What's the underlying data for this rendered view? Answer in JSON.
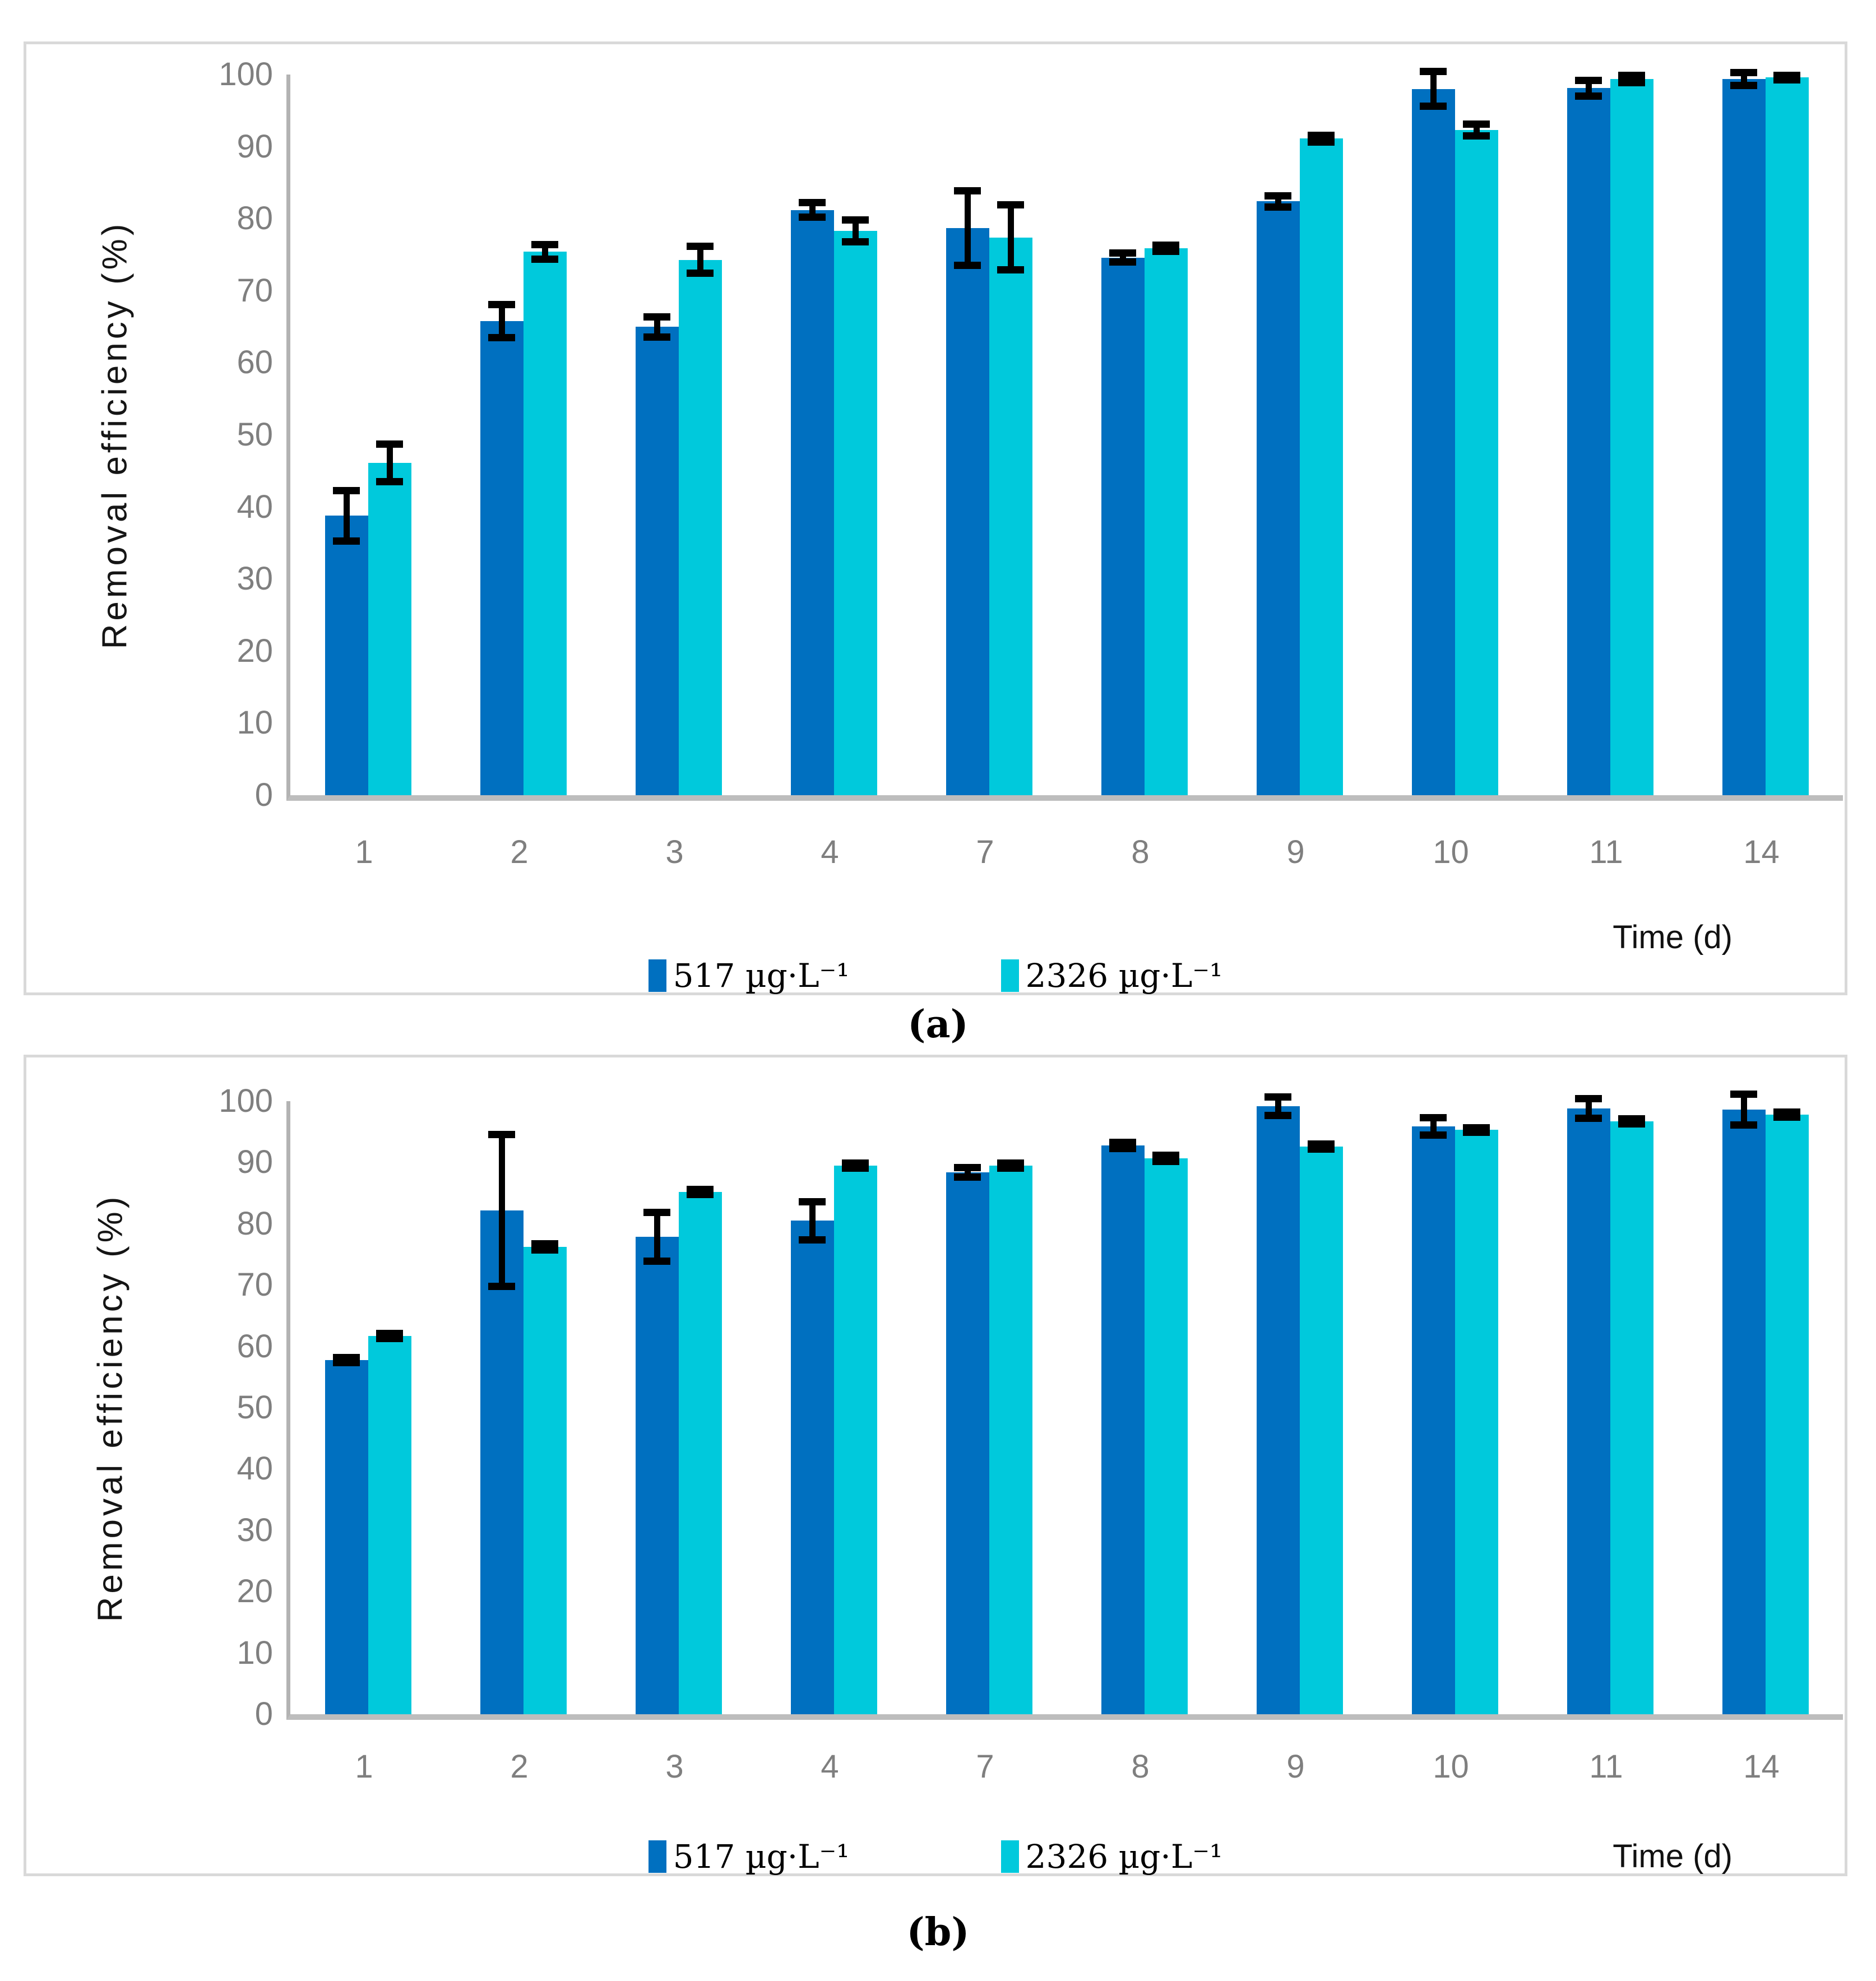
{
  "figure": {
    "panel_a_caption": "(a)",
    "panel_b_caption": "(b)"
  },
  "colors": {
    "series_517": "#0070C0",
    "series_2326": "#00C9DC",
    "axis_line": "#B3B3B3",
    "baseline": "#BDBDBD",
    "tick_text": "#7F7F7F",
    "panel_border": "#D9D9D9",
    "error_bar": "#000000"
  },
  "chart_data": [
    {
      "type": "bar",
      "title": "(a)",
      "categories": [
        "1",
        "2",
        "3",
        "4",
        "7",
        "8",
        "9",
        "10",
        "11",
        "14"
      ],
      "series": [
        {
          "name": "517 µg·L⁻¹",
          "color": "#0070C0",
          "values": [
            38.8,
            65.8,
            65.0,
            81.2,
            78.7,
            74.6,
            82.4,
            98.0,
            98.1,
            99.4
          ],
          "errors": [
            3.5,
            2.3,
            1.4,
            1.0,
            5.2,
            0.6,
            0.8,
            2.4,
            1.1,
            0.9
          ]
        },
        {
          "name": "2326 µg·L⁻¹",
          "color": "#00C9DC",
          "values": [
            46.1,
            75.4,
            74.3,
            78.3,
            77.4,
            75.9,
            91.1,
            92.3,
            99.4,
            99.6
          ],
          "errors": [
            2.6,
            1.0,
            1.9,
            1.5,
            4.5,
            0.4,
            0.5,
            0.8,
            0.5,
            0.3
          ]
        }
      ],
      "xlabel": "Time (d)",
      "ylabel": "Removal efficiency (%)",
      "ylim": [
        0,
        100
      ],
      "ytick_step": 10,
      "grid": false,
      "legend_position": "bottom-center",
      "error_bars": true
    },
    {
      "type": "bar",
      "title": "(b)",
      "categories": [
        "1",
        "2",
        "3",
        "4",
        "7",
        "8",
        "9",
        "10",
        "11",
        "14"
      ],
      "series": [
        {
          "name": "517 µg·L⁻¹",
          "color": "#0070C0",
          "values": [
            57.8,
            82.2,
            77.9,
            80.5,
            88.4,
            92.8,
            99.2,
            95.9,
            98.8,
            98.6
          ],
          "errors": [
            0.4,
            12.4,
            4.0,
            3.1,
            0.8,
            0.5,
            1.5,
            1.4,
            1.6,
            2.5
          ]
        },
        {
          "name": "2326 µg·L⁻¹",
          "color": "#00C9DC",
          "values": [
            61.7,
            76.2,
            85.2,
            89.5,
            89.5,
            90.7,
            92.6,
            95.3,
            96.7,
            97.8
          ],
          "errors": [
            0.4,
            0.5,
            0.4,
            0.4,
            0.4,
            0.5,
            0.4,
            0.4,
            0.4,
            0.4
          ]
        }
      ],
      "xlabel": "Time (d)",
      "ylabel": "Removal efficiency (%)",
      "ylim": [
        0,
        100
      ],
      "ytick_step": 10,
      "grid": false,
      "legend_position": "bottom-center",
      "error_bars": true
    }
  ]
}
